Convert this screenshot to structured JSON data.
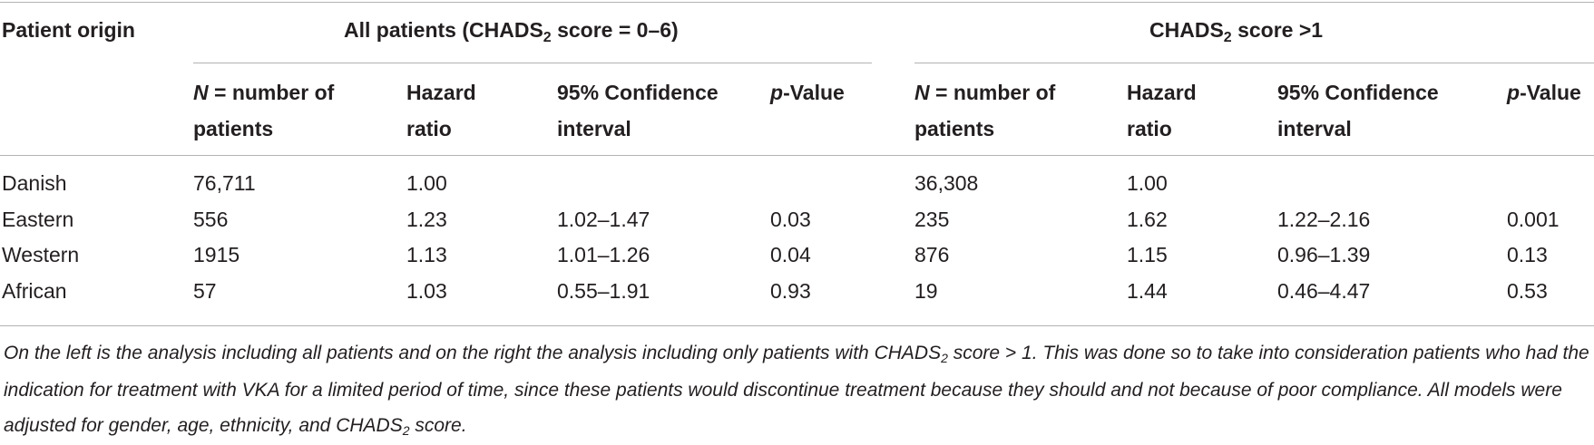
{
  "header": {
    "patient_origin": "Patient origin",
    "all_patients_label": "All patients (CHADS",
    "all_patients_sub": "2",
    "all_patients_suffix": " score = 0–6)",
    "chads_gt1_label": "CHADS",
    "chads_gt1_sub": "2",
    "chads_gt1_suffix": " score >1",
    "n_italic": "N",
    "n_rest_line1": " = number of",
    "n_line2": "patients",
    "hazard_line1": "Hazard",
    "hazard_line2": "ratio",
    "ci_line1": "95% Confidence",
    "ci_line2": "interval",
    "p_italic": "p",
    "p_rest": "-Value"
  },
  "rows": [
    {
      "origin": "Danish",
      "n1": "76,711",
      "hr1": "1.00",
      "ci1": "",
      "p1": "",
      "n2": "36,308",
      "hr2": "1.00",
      "ci2": "",
      "p2": ""
    },
    {
      "origin": "Eastern",
      "n1": "556",
      "hr1": "1.23",
      "ci1": "1.02–1.47",
      "p1": "0.03",
      "n2": "235",
      "hr2": "1.62",
      "ci2": "1.22–2.16",
      "p2": "0.001"
    },
    {
      "origin": "Western",
      "n1": "1915",
      "hr1": "1.13",
      "ci1": "1.01–1.26",
      "p1": "0.04",
      "n2": "876",
      "hr2": "1.15",
      "ci2": "0.96–1.39",
      "p2": "0.13"
    },
    {
      "origin": "African",
      "n1": "57",
      "hr1": "1.03",
      "ci1": "0.55–1.91",
      "p1": "0.93",
      "n2": "19",
      "hr2": "1.44",
      "ci2": "0.46–4.47",
      "p2": "0.53"
    }
  ],
  "footnote": {
    "part1": "On the left is the analysis including all patients and on the right the analysis including only patients with CHADS",
    "sub1": "2",
    "part2": " score > 1. This was done so to take into consideration patients who had the indication for treatment with VKA for a limited period of time, since these patients would discontinue treatment because they should and not because of poor compliance. All models were adjusted for gender, age, ethnicity, and CHADS",
    "sub2": "2",
    "part3": " score."
  }
}
